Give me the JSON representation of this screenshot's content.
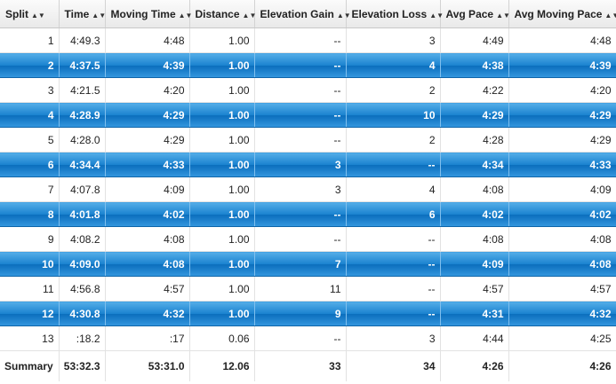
{
  "table": {
    "headers": [
      "Split",
      "Time",
      "Moving Time",
      "Distance",
      "Elevation Gain",
      "Elevation Loss",
      "Avg Pace",
      "Avg Moving Pace"
    ],
    "sort_icon": "sort-arrows-icon",
    "sort_glyph": "▲▼",
    "rows": [
      [
        "1",
        "4:49.3",
        "4:48",
        "1.00",
        "--",
        "3",
        "4:49",
        "4:48"
      ],
      [
        "2",
        "4:37.5",
        "4:39",
        "1.00",
        "--",
        "4",
        "4:38",
        "4:39"
      ],
      [
        "3",
        "4:21.5",
        "4:20",
        "1.00",
        "--",
        "2",
        "4:22",
        "4:20"
      ],
      [
        "4",
        "4:28.9",
        "4:29",
        "1.00",
        "--",
        "10",
        "4:29",
        "4:29"
      ],
      [
        "5",
        "4:28.0",
        "4:29",
        "1.00",
        "--",
        "2",
        "4:28",
        "4:29"
      ],
      [
        "6",
        "4:34.4",
        "4:33",
        "1.00",
        "3",
        "--",
        "4:34",
        "4:33"
      ],
      [
        "7",
        "4:07.8",
        "4:09",
        "1.00",
        "3",
        "4",
        "4:08",
        "4:09"
      ],
      [
        "8",
        "4:01.8",
        "4:02",
        "1.00",
        "--",
        "6",
        "4:02",
        "4:02"
      ],
      [
        "9",
        "4:08.2",
        "4:08",
        "1.00",
        "--",
        "--",
        "4:08",
        "4:08"
      ],
      [
        "10",
        "4:09.0",
        "4:08",
        "1.00",
        "7",
        "--",
        "4:09",
        "4:08"
      ],
      [
        "11",
        "4:56.8",
        "4:57",
        "1.00",
        "11",
        "--",
        "4:57",
        "4:57"
      ],
      [
        "12",
        "4:30.8",
        "4:32",
        "1.00",
        "9",
        "--",
        "4:31",
        "4:32"
      ],
      [
        "13",
        ":18.2",
        ":17",
        "0.06",
        "--",
        "3",
        "4:44",
        "4:25"
      ]
    ],
    "summary": [
      "Summary",
      "53:32.3",
      "53:31.0",
      "12.06",
      "33",
      "34",
      "4:26",
      "4:26"
    ]
  },
  "colors": {
    "highlight_row": "#1a82cf",
    "header_bg": "#f2f2f2"
  }
}
